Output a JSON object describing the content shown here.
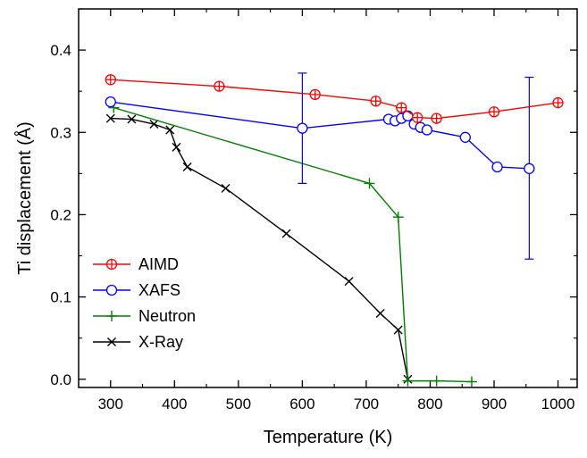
{
  "chart_data": {
    "type": "line",
    "title": "",
    "xlabel": "Temperature (K)",
    "ylabel": "Ti displacement (Å)",
    "xlim": [
      250,
      1030
    ],
    "ylim": [
      -0.01,
      0.45
    ],
    "xticks": [
      300,
      400,
      500,
      600,
      700,
      800,
      900,
      1000
    ],
    "xtick_labels": [
      "300",
      "400",
      "500",
      "600",
      "700",
      "800",
      "900",
      "1000"
    ],
    "yticks": [
      0.0,
      0.1,
      0.2,
      0.3,
      0.4
    ],
    "ytick_labels": [
      "0.0",
      "0.1",
      "0.2",
      "0.3",
      "0.4"
    ],
    "grid": false,
    "legend_position": "bottom-left",
    "series": [
      {
        "name": "AIMD",
        "color": "#ff0000",
        "marker": "circle-plus",
        "x": [
          300,
          470,
          620,
          715,
          755,
          780,
          810,
          900,
          1000
        ],
        "y": [
          0.364,
          0.356,
          0.346,
          0.338,
          0.33,
          0.318,
          0.317,
          0.325,
          0.336
        ],
        "error_bars": []
      },
      {
        "name": "XAFS",
        "color": "#0000ff",
        "marker": "circle",
        "x": [
          300,
          600,
          735,
          745,
          755,
          765,
          775,
          785,
          795,
          855,
          905,
          955
        ],
        "y": [
          0.337,
          0.305,
          0.316,
          0.314,
          0.317,
          0.32,
          0.31,
          0.306,
          0.303,
          0.294,
          0.258,
          0.256
        ],
        "error_bars": [
          {
            "x": 600,
            "low": 0.238,
            "high": 0.372
          },
          {
            "x": 955,
            "low": 0.146,
            "high": 0.367
          }
        ]
      },
      {
        "name": "Neutron",
        "color": "#008000",
        "marker": "plus",
        "x": [
          305,
          705,
          750,
          765,
          810,
          865
        ],
        "y": [
          0.33,
          0.238,
          0.197,
          -0.002,
          -0.002,
          -0.003
        ],
        "error_bars": []
      },
      {
        "name": "X-Ray",
        "color": "#000000",
        "marker": "x",
        "x": [
          300,
          333,
          368,
          393,
          403,
          420,
          480,
          575,
          673,
          722,
          750,
          765
        ],
        "y": [
          0.317,
          0.316,
          0.31,
          0.303,
          0.282,
          0.258,
          0.232,
          0.177,
          0.119,
          0.08,
          0.06,
          0.0
        ],
        "error_bars": []
      }
    ]
  }
}
